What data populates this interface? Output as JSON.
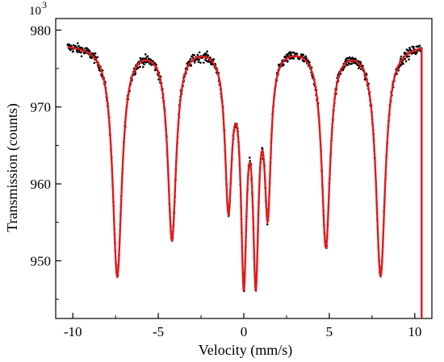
{
  "chart_data": {
    "type": "scatter",
    "xlabel": "Velocity (mm/s)",
    "ylabel": "Transmission (counts)",
    "y_multiplier": "10",
    "y_multiplier_exp": "3",
    "xlim": [
      -11,
      11
    ],
    "ylim": [
      942.5,
      981.5
    ],
    "x_ticks": [
      -10,
      -5,
      0,
      5,
      10
    ],
    "x_tick_labels": [
      "-10",
      "-5",
      "0",
      "5",
      "10"
    ],
    "y_ticks": [
      950,
      960,
      970,
      980
    ],
    "y_tick_labels": [
      "950",
      "960",
      "970",
      "980"
    ],
    "grid": false,
    "series": [
      {
        "type": "scatter",
        "color": "#000000",
        "x_range": [
          -10.3,
          10.4
        ],
        "baseline": 978.3,
        "noise_amplitude": 0.6
      },
      {
        "type": "line",
        "color": "#e31a1c",
        "baseline": 978.3,
        "x_range": [
          -10.3,
          10.4
        ],
        "drop_at_end": {
          "x": 10.4,
          "y_end": 942.5
        },
        "absorption_lines": [
          {
            "center": -7.4,
            "depth": 30.0,
            "hwhm": 0.33
          },
          {
            "center": -4.2,
            "depth": 25.0,
            "hwhm": 0.3
          },
          {
            "center": -0.9,
            "depth": 20.0,
            "hwhm": 0.24
          },
          {
            "center": 0.0,
            "depth": 28.0,
            "hwhm": 0.2
          },
          {
            "center": 0.7,
            "depth": 27.5,
            "hwhm": 0.2
          },
          {
            "center": 1.4,
            "depth": 20.0,
            "hwhm": 0.22
          },
          {
            "center": 4.8,
            "depth": 26.0,
            "hwhm": 0.3
          },
          {
            "center": 8.0,
            "depth": 30.0,
            "hwhm": 0.33
          }
        ]
      }
    ]
  }
}
